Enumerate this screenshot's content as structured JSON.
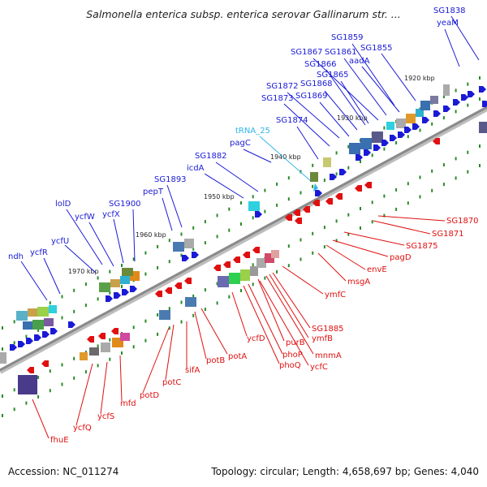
{
  "title": "Salmonella enterica subsp. enterica serovar Gallinarum str. ...",
  "footer": {
    "accession": "Accession: NC_011274",
    "summary": "Topology: circular; Length: 4,658,697 bp; Genes: 4,040"
  },
  "colors": {
    "forward": "#1a1ad6",
    "reverse": "#e01010",
    "trna": "#2fb6e8",
    "backbone": "#8a8a8a"
  },
  "ticks": [
    "1920 kbp",
    "1930 kbp",
    "1940 kbp",
    "1950 kbp",
    "1960 kbp",
    "1970 kbp"
  ],
  "forward_labels": [
    "SG1838",
    "yeaM",
    "SG1859",
    "SG1855",
    "SG1867",
    "SG1861",
    "SG1866",
    "aadA",
    "SG1865",
    "SG1872",
    "SG1868",
    "SG1873",
    "SG1869",
    "SG1874",
    "pagC",
    "SG1882",
    "icdA",
    "SG1893",
    "pepT",
    "lolD",
    "SG1900",
    "ycfW",
    "ycfX",
    "ycfU",
    "ndh",
    "ycfR"
  ],
  "trna_labels": [
    "tRNA_25"
  ],
  "reverse_labels": [
    "SG1870",
    "SG1871",
    "SG1875",
    "pagD",
    "envE",
    "msgA",
    "ymfC",
    "SG1885",
    "ymfB",
    "mnmA",
    "purB",
    "ycfC",
    "phoP",
    "phoQ",
    "ycfD",
    "potA",
    "potB",
    "sifA",
    "potC",
    "potD",
    "mfd",
    "ycfS",
    "ycfQ",
    "fhuE"
  ]
}
